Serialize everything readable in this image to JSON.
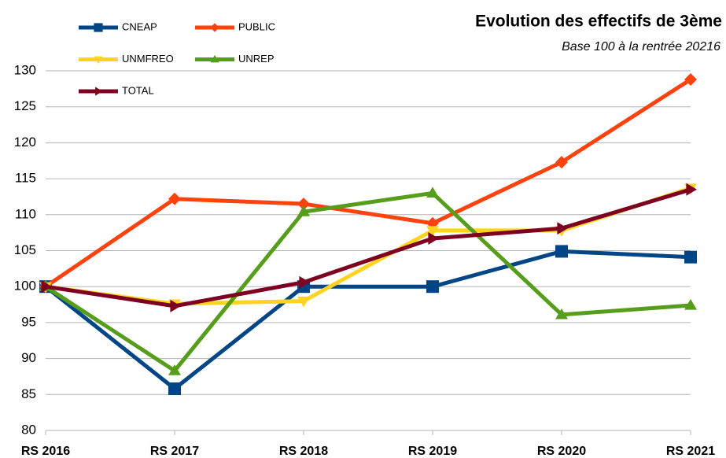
{
  "chart_data": {
    "type": "line",
    "title": "Evolution des effectifs de 3ème",
    "subtitle": "Base 100 à la rentrée 20216",
    "categories": [
      "RS 2016",
      "RS 2017",
      "RS 2018",
      "RS 2019",
      "RS 2020",
      "RS 2021"
    ],
    "series": [
      {
        "name": "CNEAP",
        "color": "#004586",
        "marker": "square",
        "values": [
          100,
          85.8,
          100,
          100,
          104.9,
          104.1
        ]
      },
      {
        "name": "PUBLIC",
        "color": "#ff420e",
        "marker": "diamond",
        "values": [
          100,
          112.2,
          111.5,
          108.8,
          117.3,
          128.8
        ]
      },
      {
        "name": "UNMFREO",
        "color": "#ffd320",
        "marker": "triangle-down",
        "values": [
          100,
          97.6,
          98,
          107.8,
          107.8,
          113.7
        ]
      },
      {
        "name": "UNREP",
        "color": "#579d1c",
        "marker": "triangle-up",
        "values": [
          100,
          88.3,
          110.4,
          113,
          96.1,
          97.4
        ]
      },
      {
        "name": "TOTAL",
        "color": "#7e0021",
        "marker": "triangle-right",
        "values": [
          100,
          97.3,
          100.6,
          106.7,
          108.1,
          113.5
        ]
      }
    ],
    "ylim": [
      80,
      130
    ],
    "yticks": [
      80,
      85,
      90,
      95,
      100,
      105,
      110,
      115,
      120,
      125,
      130
    ],
    "grid": true
  }
}
